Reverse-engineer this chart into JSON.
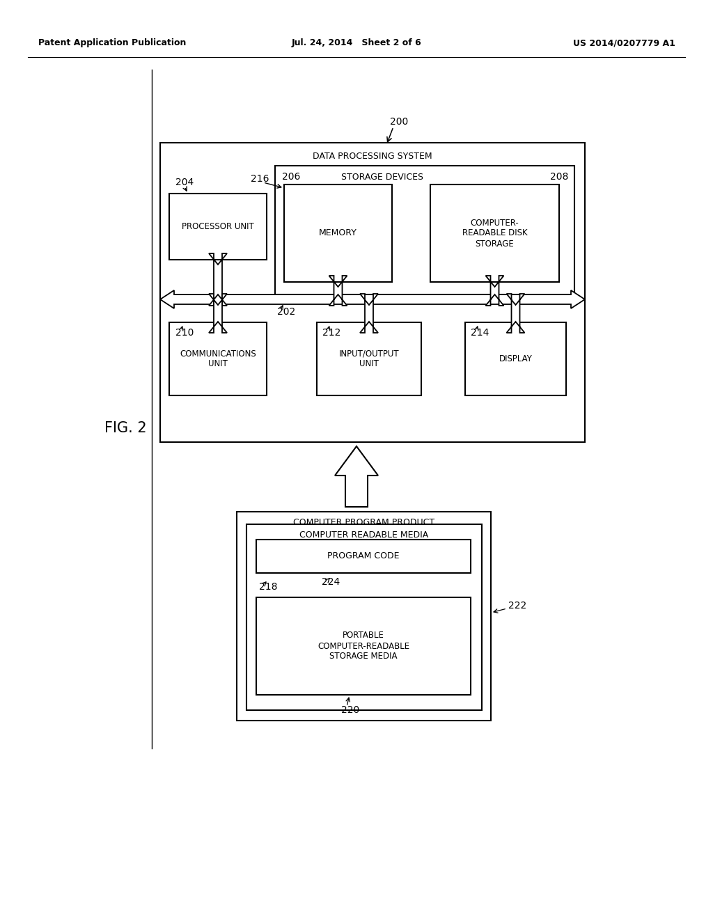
{
  "bg_color": "#ffffff",
  "header_left": "Patent Application Publication",
  "header_mid": "Jul. 24, 2014   Sheet 2 of 6",
  "header_right": "US 2014/0207779 A1",
  "fig_label": "FIG. 2",
  "label_200": "200",
  "label_202": "202",
  "label_204": "204",
  "label_206": "206",
  "label_208": "208",
  "label_210": "210",
  "label_212": "212",
  "label_214": "214",
  "label_216": "216",
  "label_218": "218",
  "label_220": "220",
  "label_222": "222",
  "label_224": "224",
  "text_dps": "DATA PROCESSING SYSTEM",
  "text_storage_devices": "STORAGE DEVICES",
  "text_processor": "PROCESSOR UNIT",
  "text_memory": "MEMORY",
  "text_disk": "COMPUTER-\nREADABLE DISK\nSTORAGE",
  "text_comm": "COMMUNICATIONS\nUNIT",
  "text_io": "INPUT/OUTPUT\nUNIT",
  "text_display": "DISPLAY",
  "text_cpp": "COMPUTER PROGRAM PRODUCT",
  "text_crm": "COMPUTER READABLE MEDIA",
  "text_pc": "PROGRAM CODE",
  "text_pcsm": "PORTABLE\nCOMPUTER-READABLE\nSTORAGE MEDIA"
}
